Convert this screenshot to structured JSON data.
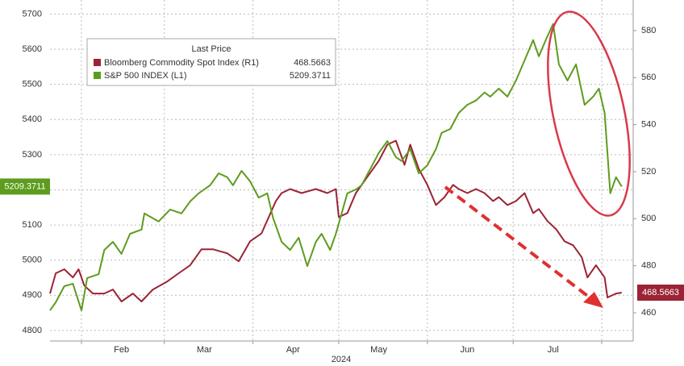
{
  "chart_data": {
    "type": "line",
    "xlabel": "2024",
    "xlim": [
      20,
      224
    ],
    "xticks": [
      {
        "value": 45,
        "label": "Feb"
      },
      {
        "value": 74,
        "label": "Mar"
      },
      {
        "value": 105,
        "label": "Apr"
      },
      {
        "value": 135,
        "label": "May"
      },
      {
        "value": 166,
        "label": "Jun"
      },
      {
        "value": 196,
        "label": "Jul"
      }
    ],
    "x_gridlines": [
      31,
      60,
      91,
      121,
      152,
      182,
      213
    ],
    "ylim": [
      4770,
      5740
    ],
    "yticks": [
      4800,
      4900,
      5000,
      5100,
      5200,
      5300,
      5400,
      5500,
      5600,
      5700
    ],
    "y2lim": [
      448,
      593
    ],
    "y2ticks": [
      460,
      480,
      500,
      520,
      540,
      560,
      580
    ],
    "grid": true,
    "legend_title": "Last Price",
    "legend": "upper left",
    "series": [
      {
        "name": "Bloomberg Commodity Spot Index  (R1)",
        "color": "#9b2335",
        "axis": "y2",
        "last_value": 468.5663,
        "x": [
          20,
          22,
          25,
          28,
          30,
          32,
          35,
          39,
          42,
          45,
          49,
          52,
          56,
          61,
          65,
          69,
          73,
          77,
          82,
          86,
          90,
          94,
          99,
          101,
          104,
          108,
          113,
          117,
          120,
          121,
          124,
          127,
          131,
          135,
          138,
          141,
          144,
          146,
          149,
          152,
          155,
          158,
          161,
          163,
          166,
          169,
          172,
          175,
          177,
          180,
          183,
          186,
          189,
          191,
          194,
          197,
          200,
          203,
          206,
          208,
          211,
          214,
          215,
          218,
          220
        ],
        "values": [
          468.2,
          476.8,
          478.5,
          475,
          478.5,
          471.6,
          468.2,
          468.2,
          469.9,
          464.8,
          468.2,
          464.8,
          469.9,
          473.3,
          476.8,
          480.2,
          487,
          487,
          485.3,
          481.9,
          490.4,
          493.8,
          507.5,
          510.9,
          512.6,
          510.9,
          512.6,
          510.9,
          512.6,
          500.7,
          502.4,
          510.9,
          517.8,
          524.6,
          531.5,
          533.2,
          522.9,
          531.5,
          521.2,
          514.4,
          505.8,
          509.2,
          514.4,
          512.6,
          510.9,
          512.6,
          510.9,
          507.5,
          509.2,
          505.8,
          507.5,
          510.9,
          502.4,
          504.1,
          499,
          495.6,
          490.4,
          488.7,
          483.6,
          475,
          480.2,
          475,
          466.5,
          468.2,
          468.5663
        ]
      },
      {
        "name": "S&P 500 INDEX  (L1)",
        "color": "#5e9c1e",
        "last_value": 5209.3711,
        "x": [
          20,
          22,
          25,
          28,
          31,
          33,
          37,
          39,
          42,
          45,
          48,
          52,
          53,
          58,
          62,
          66,
          69,
          72,
          76,
          79,
          82,
          84,
          87,
          90,
          93,
          96,
          98,
          101,
          104,
          107,
          110,
          113,
          115,
          118,
          120,
          124,
          127,
          129,
          132,
          135,
          138,
          141,
          143,
          146,
          149,
          152,
          155,
          157,
          160,
          163,
          166,
          169,
          172,
          174,
          177,
          180,
          183,
          186,
          189,
          191,
          194,
          196,
          198,
          201,
          204,
          207,
          210,
          212,
          214,
          216,
          218,
          220
        ],
        "values": [
          4857,
          4880,
          4926,
          4933,
          4857,
          4949,
          4960,
          5029,
          5052,
          5018,
          5075,
          5087,
          5133,
          5110,
          5144,
          5133,
          5167,
          5190,
          5213,
          5247,
          5236,
          5213,
          5254,
          5224,
          5178,
          5190,
          5121,
          5052,
          5029,
          5064,
          4983,
          5052,
          5075,
          5029,
          5075,
          5190,
          5201,
          5213,
          5259,
          5305,
          5339,
          5293,
          5282,
          5316,
          5247,
          5270,
          5316,
          5362,
          5373,
          5419,
          5442,
          5454,
          5477,
          5465,
          5488,
          5465,
          5511,
          5568,
          5626,
          5580,
          5637,
          5672,
          5557,
          5511,
          5557,
          5442,
          5465,
          5488,
          5419,
          5190,
          5236,
          5209.3711
        ]
      }
    ]
  }
}
